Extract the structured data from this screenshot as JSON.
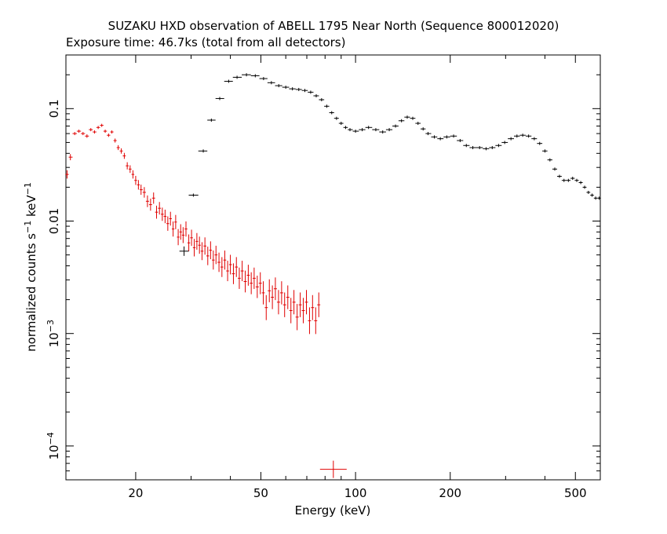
{
  "chart_data": {
    "type": "scatter",
    "title": "SUZAKU HXD observation of ABELL 1795 Near North (Sequence 800012020)",
    "subtitle": "Exposure time: 46.7ks (total from all detectors)",
    "xlabel": "Energy (keV)",
    "ylabel": "normalized counts s",
    "ylabel_sup1": "−1",
    "ylabel_mid": " keV",
    "ylabel_sup2": "−1",
    "xscale": "log",
    "yscale": "log",
    "xlim": [
      12,
      600
    ],
    "ylim": [
      5e-05,
      0.3
    ],
    "xticks": [
      {
        "value": 20,
        "label": "20"
      },
      {
        "value": 50,
        "label": "50"
      },
      {
        "value": 100,
        "label": "100"
      },
      {
        "value": 200,
        "label": "200"
      },
      {
        "value": 500,
        "label": "500"
      }
    ],
    "yticks": [
      {
        "value": 0.1,
        "label": "0.1"
      },
      {
        "value": 0.01,
        "label": "0.01"
      },
      {
        "value": 0.001,
        "label": "10",
        "sup": "−3"
      },
      {
        "value": 0.0001,
        "label": "10",
        "sup": "−4"
      }
    ],
    "colors": {
      "pin": "#e00000",
      "gso": "#000000"
    },
    "series": [
      {
        "key": "pin",
        "color": "#e00000",
        "points": [
          [
            12.1,
            0.026
          ],
          [
            12.4,
            0.037
          ],
          [
            12.8,
            0.06
          ],
          [
            13.2,
            0.063
          ],
          [
            13.6,
            0.06
          ],
          [
            14.0,
            0.057
          ],
          [
            14.4,
            0.065
          ],
          [
            14.8,
            0.062
          ],
          [
            15.2,
            0.068
          ],
          [
            15.6,
            0.071
          ],
          [
            16.0,
            0.063
          ],
          [
            16.4,
            0.058
          ],
          [
            16.8,
            0.062
          ],
          [
            17.2,
            0.052
          ],
          [
            17.6,
            0.045
          ],
          [
            18.0,
            0.042
          ],
          [
            18.4,
            0.038
          ],
          [
            18.8,
            0.031
          ],
          [
            19.2,
            0.029
          ],
          [
            19.6,
            0.026
          ],
          [
            20.0,
            0.023
          ],
          [
            20.4,
            0.021
          ],
          [
            20.8,
            0.019
          ],
          [
            21.3,
            0.018
          ],
          [
            21.8,
            0.015
          ],
          [
            22.3,
            0.014
          ],
          [
            22.8,
            0.016
          ],
          [
            23.3,
            0.012
          ],
          [
            23.8,
            0.013
          ],
          [
            24.3,
            0.0115
          ],
          [
            24.8,
            0.011
          ],
          [
            25.3,
            0.0095
          ],
          [
            25.8,
            0.0105
          ],
          [
            26.3,
            0.0085
          ],
          [
            26.8,
            0.0098
          ],
          [
            27.3,
            0.0072
          ],
          [
            27.8,
            0.008
          ],
          [
            28.3,
            0.0075
          ],
          [
            28.9,
            0.0085
          ],
          [
            29.5,
            0.0064
          ],
          [
            30.1,
            0.0071
          ],
          [
            30.7,
            0.0058
          ],
          [
            31.3,
            0.0066
          ],
          [
            31.9,
            0.0061
          ],
          [
            32.5,
            0.0054
          ],
          [
            33.2,
            0.006
          ],
          [
            33.9,
            0.0049
          ],
          [
            34.6,
            0.0055
          ],
          [
            35.3,
            0.0045
          ],
          [
            36.0,
            0.005
          ],
          [
            36.8,
            0.0043
          ],
          [
            37.6,
            0.0039
          ],
          [
            38.4,
            0.0045
          ],
          [
            39.2,
            0.0036
          ],
          [
            40.0,
            0.0041
          ],
          [
            40.9,
            0.0034
          ],
          [
            41.8,
            0.0039
          ],
          [
            42.7,
            0.0031
          ],
          [
            43.6,
            0.0036
          ],
          [
            44.6,
            0.0029
          ],
          [
            45.6,
            0.0033
          ],
          [
            46.6,
            0.0028
          ],
          [
            47.6,
            0.0031
          ],
          [
            48.7,
            0.0026
          ],
          [
            49.8,
            0.0028
          ],
          [
            50.9,
            0.0023
          ],
          [
            52.0,
            0.0017
          ],
          [
            53.2,
            0.0024
          ],
          [
            54.4,
            0.0021
          ],
          [
            55.6,
            0.0025
          ],
          [
            56.9,
            0.0019
          ],
          [
            58.2,
            0.0023
          ],
          [
            59.5,
            0.0018
          ],
          [
            60.9,
            0.0021
          ],
          [
            62.3,
            0.0016
          ],
          [
            63.7,
            0.0019
          ],
          [
            65.2,
            0.0014
          ],
          [
            66.7,
            0.0018
          ],
          [
            68.2,
            0.0016
          ],
          [
            69.8,
            0.0019
          ],
          [
            71.4,
            0.0013
          ],
          [
            73.0,
            0.0017
          ],
          [
            74.7,
            0.0013
          ],
          [
            76.4,
            0.0018
          ]
        ]
      },
      {
        "key": "gso",
        "color": "#000000",
        "points": [
          [
            28.5,
            0.0054
          ],
          [
            30.5,
            0.017
          ],
          [
            32.8,
            0.042
          ],
          [
            34.8,
            0.079
          ],
          [
            37.0,
            0.123
          ],
          [
            39.5,
            0.175
          ],
          [
            42.0,
            0.19
          ],
          [
            45.0,
            0.2
          ],
          [
            48.0,
            0.196
          ],
          [
            51.0,
            0.185
          ],
          [
            54.0,
            0.17
          ],
          [
            57.0,
            0.16
          ],
          [
            60.0,
            0.155
          ],
          [
            63.0,
            0.15
          ],
          [
            66.0,
            0.148
          ],
          [
            69.0,
            0.145
          ],
          [
            72.0,
            0.14
          ],
          [
            75.0,
            0.13
          ],
          [
            78.0,
            0.12
          ],
          [
            81.0,
            0.105
          ],
          [
            84.0,
            0.092
          ],
          [
            87.0,
            0.082
          ],
          [
            90.0,
            0.074
          ],
          [
            93.0,
            0.068
          ],
          [
            96.0,
            0.065
          ],
          [
            100.0,
            0.063
          ],
          [
            105.0,
            0.065
          ],
          [
            110.0,
            0.068
          ],
          [
            116.0,
            0.065
          ],
          [
            122.0,
            0.062
          ],
          [
            128.0,
            0.065
          ],
          [
            134.0,
            0.07
          ],
          [
            140.0,
            0.078
          ],
          [
            146.0,
            0.084
          ],
          [
            152.0,
            0.082
          ],
          [
            158.0,
            0.074
          ],
          [
            164.0,
            0.066
          ],
          [
            170.0,
            0.06
          ],
          [
            178.0,
            0.056
          ],
          [
            186.0,
            0.054
          ],
          [
            195.0,
            0.056
          ],
          [
            205.0,
            0.057
          ],
          [
            215.0,
            0.052
          ],
          [
            225.0,
            0.047
          ],
          [
            236.0,
            0.045
          ],
          [
            248.0,
            0.045
          ],
          [
            260.0,
            0.044
          ],
          [
            272.0,
            0.045
          ],
          [
            285.0,
            0.047
          ],
          [
            298.0,
            0.05
          ],
          [
            312.0,
            0.054
          ],
          [
            326.0,
            0.057
          ],
          [
            340.0,
            0.058
          ],
          [
            355.0,
            0.057
          ],
          [
            370.0,
            0.054
          ],
          [
            385.0,
            0.049
          ],
          [
            400.0,
            0.042
          ],
          [
            415.0,
            0.035
          ],
          [
            430.0,
            0.029
          ],
          [
            445.0,
            0.025
          ],
          [
            460.0,
            0.023
          ],
          [
            475.0,
            0.023
          ],
          [
            490.0,
            0.024
          ],
          [
            505.0,
            0.023
          ],
          [
            520.0,
            0.022
          ],
          [
            535.0,
            0.02
          ],
          [
            550.0,
            0.018
          ],
          [
            565.0,
            0.017
          ],
          [
            580.0,
            0.016
          ],
          [
            595.0,
            0.016
          ]
        ]
      },
      {
        "key": "pin-outlier",
        "color": "#e00000",
        "points": [
          [
            85,
            6.2e-05
          ]
        ]
      }
    ]
  }
}
